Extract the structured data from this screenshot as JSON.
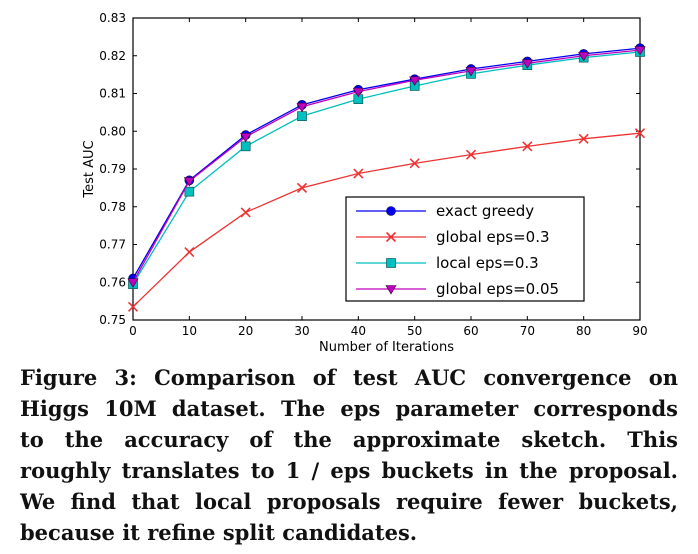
{
  "figure": {
    "caption_lines": [
      "Figure 3: Comparison of test AUC convergence on",
      "Higgs 10M dataset. The eps parameter corresponds",
      "to the accuracy of the approximate sketch. This",
      "roughly translates to 1 / eps buckets in the proposal.",
      "We find that local proposals require fewer buckets,",
      "because it refine split candidates."
    ]
  },
  "chart_data": {
    "type": "line",
    "title": "",
    "xlabel": "Number of Iterations",
    "ylabel": "Test AUC",
    "xlim": [
      0,
      90
    ],
    "ylim": [
      0.75,
      0.83
    ],
    "grid": false,
    "legend_position": "inside lower-right",
    "frame_color": "#000000",
    "xticks": [
      0,
      10,
      20,
      30,
      40,
      50,
      60,
      70,
      80,
      90
    ],
    "xtick_labels": [
      "0",
      "10",
      "20",
      "30",
      "40",
      "50",
      "60",
      "70",
      "80",
      "90"
    ],
    "yticks": [
      0.75,
      0.76,
      0.77,
      0.78,
      0.79,
      0.8,
      0.81,
      0.82,
      0.83
    ],
    "ytick_labels": [
      "0.75",
      "0.76",
      "0.77",
      "0.78",
      "0.79",
      "0.80",
      "0.81",
      "0.82",
      "0.83"
    ],
    "x": [
      0,
      10,
      20,
      30,
      40,
      50,
      60,
      70,
      80,
      90
    ],
    "series": [
      {
        "name": "exact greedy",
        "color": "#0000ee",
        "marker": "circle",
        "values": [
          0.761,
          0.787,
          0.799,
          0.807,
          0.811,
          0.8138,
          0.8165,
          0.8185,
          0.8205,
          0.822
        ]
      },
      {
        "name": "global eps=0.3",
        "color": "#ee3333",
        "marker": "x",
        "values": [
          0.7535,
          0.768,
          0.7785,
          0.785,
          0.7888,
          0.7915,
          0.7938,
          0.796,
          0.798,
          0.7995
        ]
      },
      {
        "name": "local eps=0.3",
        "color": "#00bfbf",
        "marker": "square",
        "values": [
          0.7595,
          0.784,
          0.796,
          0.804,
          0.8085,
          0.812,
          0.8152,
          0.8175,
          0.8195,
          0.821
        ]
      },
      {
        "name": "global eps=0.05",
        "color": "#bf00bf",
        "marker": "triangle-down",
        "values": [
          0.76,
          0.7868,
          0.7985,
          0.8065,
          0.8105,
          0.8135,
          0.816,
          0.818,
          0.82,
          0.8215
        ]
      }
    ]
  }
}
